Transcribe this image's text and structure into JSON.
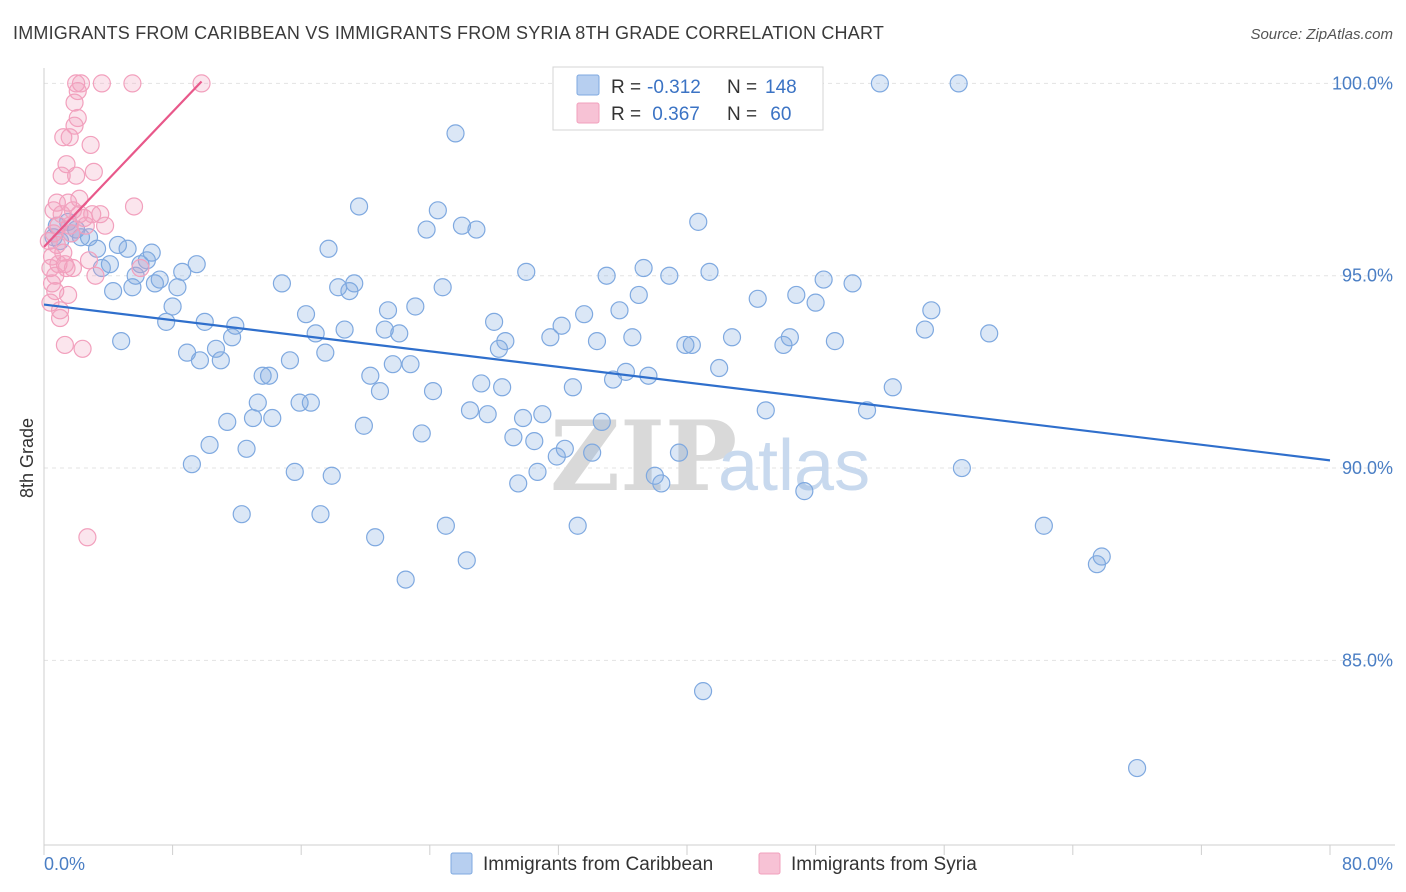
{
  "chart_data": {
    "type": "scatter",
    "title": "IMMIGRANTS FROM CARIBBEAN VS IMMIGRANTS FROM SYRIA 8TH GRADE CORRELATION CHART",
    "source": "Source: ZipAtlas.com",
    "ylabel": "8th Grade",
    "xlabel": "",
    "xlim": [
      0,
      80
    ],
    "ylim": [
      80.2,
      100.4
    ],
    "x_tick_labels": [
      {
        "value": 0,
        "label": "0.0%"
      },
      {
        "value": 80,
        "label": "80.0%"
      }
    ],
    "y_tick_labels": [
      {
        "value": 100,
        "label": "100.0%"
      },
      {
        "value": 95,
        "label": "95.0%"
      },
      {
        "value": 90,
        "label": "90.0%"
      },
      {
        "value": 85,
        "label": "85.0%"
      }
    ],
    "watermark": {
      "zip": "ZIP",
      "atlas": "atlas"
    },
    "legend": [
      {
        "r_label": "R = ",
        "r_value": "-0.312",
        "n_label": "N = ",
        "n_value": "148"
      },
      {
        "r_label": "R = ",
        "r_value": " 0.367",
        "n_label": "N = ",
        "n_value": " 60"
      }
    ],
    "series": [
      {
        "name": "Immigrants from Caribbean",
        "color": "#7fa9e0",
        "line_color": "#2f6fcc",
        "trend": [
          [
            0,
            94.25
          ],
          [
            80,
            90.2
          ]
        ],
        "points": [
          [
            0.6,
            96.0
          ],
          [
            0.8,
            96.3
          ],
          [
            1.0,
            95.9
          ],
          [
            1.5,
            96.4
          ],
          [
            1.7,
            96.1
          ],
          [
            2.0,
            96.2
          ],
          [
            2.3,
            96.0
          ],
          [
            2.8,
            96.0
          ],
          [
            3.3,
            95.7
          ],
          [
            3.6,
            95.2
          ],
          [
            4.1,
            95.3
          ],
          [
            4.3,
            94.6
          ],
          [
            4.6,
            95.8
          ],
          [
            4.8,
            93.3
          ],
          [
            5.2,
            95.7
          ],
          [
            5.5,
            94.7
          ],
          [
            5.7,
            95.0
          ],
          [
            6.0,
            95.3
          ],
          [
            6.4,
            95.4
          ],
          [
            6.7,
            95.6
          ],
          [
            6.9,
            94.8
          ],
          [
            7.2,
            94.9
          ],
          [
            7.6,
            93.8
          ],
          [
            8.0,
            94.2
          ],
          [
            8.3,
            94.7
          ],
          [
            8.6,
            95.1
          ],
          [
            8.9,
            93.0
          ],
          [
            9.2,
            90.1
          ],
          [
            9.5,
            95.3
          ],
          [
            9.7,
            92.8
          ],
          [
            10.0,
            93.8
          ],
          [
            10.3,
            90.6
          ],
          [
            10.7,
            93.1
          ],
          [
            11.0,
            92.8
          ],
          [
            11.4,
            91.2
          ],
          [
            11.7,
            93.4
          ],
          [
            11.9,
            93.7
          ],
          [
            12.3,
            88.8
          ],
          [
            12.6,
            90.5
          ],
          [
            13.0,
            91.3
          ],
          [
            13.3,
            91.7
          ],
          [
            13.6,
            92.4
          ],
          [
            14.0,
            92.4
          ],
          [
            14.2,
            91.3
          ],
          [
            14.8,
            94.8
          ],
          [
            15.3,
            92.8
          ],
          [
            15.6,
            89.9
          ],
          [
            15.9,
            91.7
          ],
          [
            16.3,
            94.0
          ],
          [
            16.6,
            91.7
          ],
          [
            16.9,
            93.5
          ],
          [
            17.2,
            88.8
          ],
          [
            17.5,
            93.0
          ],
          [
            17.7,
            95.7
          ],
          [
            17.9,
            89.8
          ],
          [
            18.3,
            94.7
          ],
          [
            18.7,
            93.6
          ],
          [
            19.0,
            94.6
          ],
          [
            19.3,
            94.8
          ],
          [
            19.6,
            96.8
          ],
          [
            19.9,
            91.1
          ],
          [
            20.3,
            92.4
          ],
          [
            20.6,
            88.2
          ],
          [
            20.9,
            92.0
          ],
          [
            21.2,
            93.6
          ],
          [
            21.4,
            94.1
          ],
          [
            21.7,
            92.7
          ],
          [
            22.1,
            93.5
          ],
          [
            22.5,
            87.1
          ],
          [
            22.8,
            92.7
          ],
          [
            23.1,
            94.2
          ],
          [
            23.5,
            90.9
          ],
          [
            23.8,
            96.2
          ],
          [
            24.2,
            92.0
          ],
          [
            24.5,
            96.7
          ],
          [
            24.8,
            94.7
          ],
          [
            25.0,
            88.5
          ],
          [
            25.6,
            98.7
          ],
          [
            26.0,
            96.3
          ],
          [
            26.3,
            87.6
          ],
          [
            26.5,
            91.5
          ],
          [
            26.9,
            96.2
          ],
          [
            27.2,
            92.2
          ],
          [
            27.6,
            91.4
          ],
          [
            28.0,
            93.8
          ],
          [
            28.3,
            93.1
          ],
          [
            28.5,
            92.1
          ],
          [
            28.7,
            93.3
          ],
          [
            29.2,
            90.8
          ],
          [
            29.5,
            89.6
          ],
          [
            29.8,
            91.3
          ],
          [
            30.0,
            95.1
          ],
          [
            30.5,
            90.7
          ],
          [
            30.7,
            89.9
          ],
          [
            31.0,
            91.4
          ],
          [
            31.5,
            93.4
          ],
          [
            31.9,
            90.3
          ],
          [
            32.2,
            93.7
          ],
          [
            32.4,
            90.5
          ],
          [
            32.9,
            92.1
          ],
          [
            33.2,
            88.5
          ],
          [
            33.6,
            94.0
          ],
          [
            34.1,
            90.4
          ],
          [
            34.4,
            93.3
          ],
          [
            34.7,
            91.2
          ],
          [
            35.0,
            95.0
          ],
          [
            35.4,
            92.3
          ],
          [
            35.8,
            94.1
          ],
          [
            36.2,
            92.5
          ],
          [
            36.6,
            93.4
          ],
          [
            37.0,
            94.5
          ],
          [
            37.3,
            95.2
          ],
          [
            37.6,
            92.4
          ],
          [
            38.0,
            89.8
          ],
          [
            38.4,
            89.6
          ],
          [
            38.9,
            95.0
          ],
          [
            39.5,
            90.4
          ],
          [
            39.9,
            93.2
          ],
          [
            40.3,
            93.2
          ],
          [
            40.7,
            96.4
          ],
          [
            41.0,
            84.2
          ],
          [
            41.4,
            95.1
          ],
          [
            42.0,
            92.6
          ],
          [
            42.8,
            93.4
          ],
          [
            44.4,
            94.4
          ],
          [
            44.9,
            91.5
          ],
          [
            46.0,
            93.2
          ],
          [
            46.4,
            93.4
          ],
          [
            46.8,
            94.5
          ],
          [
            47.3,
            89.4
          ],
          [
            48.0,
            94.3
          ],
          [
            48.5,
            94.9
          ],
          [
            49.2,
            93.3
          ],
          [
            50.3,
            94.8
          ],
          [
            51.2,
            91.5
          ],
          [
            52.0,
            100.0
          ],
          [
            52.8,
            92.1
          ],
          [
            54.8,
            93.6
          ],
          [
            55.2,
            94.1
          ],
          [
            56.9,
            100.0
          ],
          [
            57.1,
            90.0
          ],
          [
            58.8,
            93.5
          ],
          [
            62.2,
            88.5
          ],
          [
            65.5,
            87.5
          ],
          [
            65.8,
            87.7
          ],
          [
            68.0,
            82.2
          ]
        ]
      },
      {
        "name": "Immigrants from Syria",
        "color": "#f2a0bd",
        "line_color": "#e8588a",
        "trend": [
          [
            0,
            95.75
          ],
          [
            9.8,
            100.05
          ]
        ],
        "points": [
          [
            0.3,
            95.9
          ],
          [
            0.4,
            94.3
          ],
          [
            0.4,
            95.2
          ],
          [
            0.5,
            95.5
          ],
          [
            0.5,
            94.8
          ],
          [
            0.6,
            96.1
          ],
          [
            0.6,
            96.7
          ],
          [
            0.7,
            95.0
          ],
          [
            0.7,
            94.6
          ],
          [
            0.8,
            95.8
          ],
          [
            0.8,
            96.9
          ],
          [
            0.9,
            96.3
          ],
          [
            0.9,
            95.3
          ],
          [
            1.0,
            94.1
          ],
          [
            1.0,
            93.9
          ],
          [
            1.1,
            96.6
          ],
          [
            1.1,
            97.6
          ],
          [
            1.2,
            95.6
          ],
          [
            1.2,
            98.6
          ],
          [
            1.3,
            93.2
          ],
          [
            1.3,
            95.3
          ],
          [
            1.4,
            97.9
          ],
          [
            1.4,
            95.2
          ],
          [
            1.5,
            94.5
          ],
          [
            1.5,
            96.9
          ],
          [
            1.6,
            98.6
          ],
          [
            1.6,
            96.3
          ],
          [
            1.7,
            96.1
          ],
          [
            1.8,
            96.7
          ],
          [
            1.8,
            95.2
          ],
          [
            1.9,
            99.5
          ],
          [
            1.9,
            98.9
          ],
          [
            2.0,
            97.6
          ],
          [
            2.0,
            100.0
          ],
          [
            2.1,
            99.8
          ],
          [
            2.1,
            99.1
          ],
          [
            2.2,
            96.6
          ],
          [
            2.2,
            97.0
          ],
          [
            2.3,
            100.0
          ],
          [
            2.4,
            93.1
          ],
          [
            2.5,
            96.5
          ],
          [
            2.6,
            96.3
          ],
          [
            2.7,
            88.2
          ],
          [
            2.8,
            95.4
          ],
          [
            2.9,
            98.4
          ],
          [
            3.0,
            96.6
          ],
          [
            3.1,
            97.7
          ],
          [
            3.2,
            95.0
          ],
          [
            3.5,
            96.6
          ],
          [
            3.6,
            100.0
          ],
          [
            3.8,
            96.3
          ],
          [
            5.5,
            100.0
          ],
          [
            5.6,
            96.8
          ],
          [
            6.0,
            95.2
          ],
          [
            9.8,
            100.0
          ]
        ]
      }
    ],
    "bottom_legend": [
      "Immigrants from Caribbean",
      "Immigrants from Syria"
    ]
  }
}
